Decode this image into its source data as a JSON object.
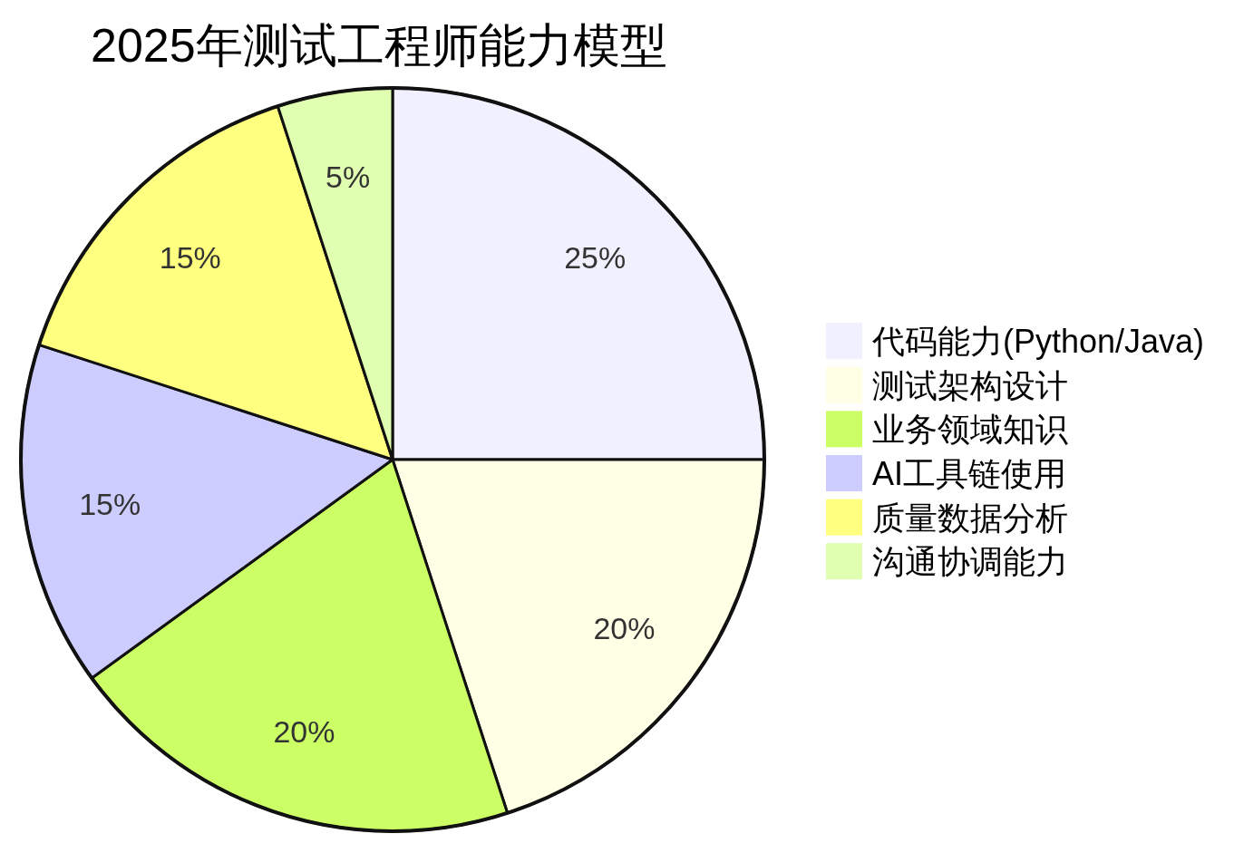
{
  "chart_data": {
    "type": "pie",
    "title": "2025年测试工程师能力模型",
    "categories": [
      "代码能力(Python/Java)",
      "测试架构设计",
      "业务领域知识",
      "AI工具链使用",
      "质量数据分析",
      "沟通协调能力"
    ],
    "values": [
      25,
      20,
      20,
      15,
      15,
      5
    ],
    "value_labels": [
      "25%",
      "20%",
      "20%",
      "15%",
      "15%",
      "5%"
    ],
    "colors": [
      "#f0f0ff",
      "#ffffe6",
      "#ccff66",
      "#ccccff",
      "#ffff80",
      "#e0ffb0"
    ],
    "legend": "right"
  }
}
